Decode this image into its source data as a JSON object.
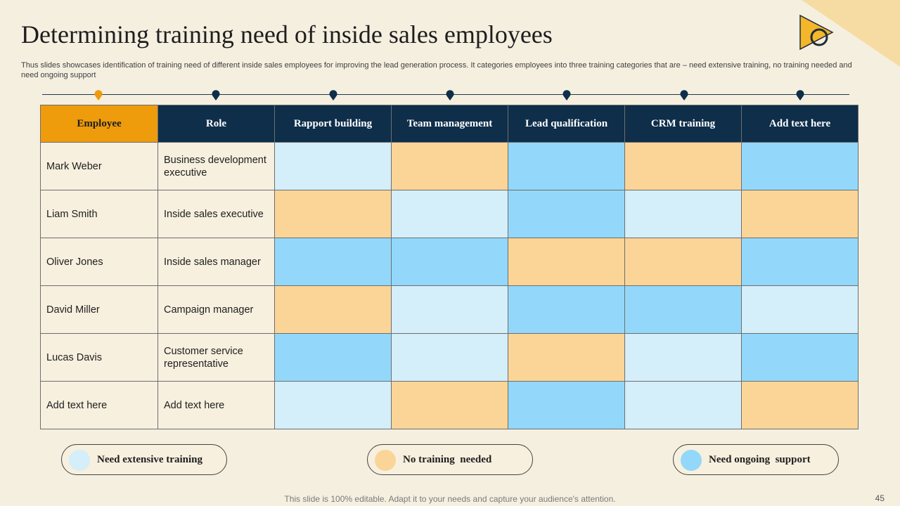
{
  "title": "Determining training need of inside sales employees",
  "subtitle": "Thus slides showcases identification of training need of different inside sales employees for improving the lead generation process. It categories employees into three training categories that are – need extensive training, no training needed and need ongoing support",
  "colors": {
    "need_extensive_training": "#d4eefa",
    "no_training_needed": "#fbd597",
    "need_ongoing_support": "#93d8fa",
    "header_navy": "#0e2e4a",
    "header_orange": "#ee9b0c",
    "background": "#f5efe0"
  },
  "table": {
    "headers": [
      "Employee",
      "Role",
      "Rapport  building",
      "Team management",
      "Lead qualification",
      "CRM training",
      "Add  text here"
    ],
    "rows": [
      {
        "employee": "Mark Weber",
        "role": "Business development executive",
        "cells": [
          "ext",
          "none",
          "ong",
          "none",
          "ong"
        ]
      },
      {
        "employee": "Liam Smith",
        "role": "Inside sales executive",
        "cells": [
          "none",
          "ext",
          "ong",
          "ext",
          "none"
        ]
      },
      {
        "employee": "Oliver Jones",
        "role": "Inside sales manager",
        "cells": [
          "ong",
          "ong",
          "none",
          "none",
          "ong"
        ]
      },
      {
        "employee": "David Miller",
        "role": "Campaign manager",
        "cells": [
          "none",
          "ext",
          "ong",
          "ong",
          "ext"
        ]
      },
      {
        "employee": "Lucas Davis",
        "role": "Customer service representative",
        "cells": [
          "ong",
          "ext",
          "none",
          "ext",
          "ong"
        ]
      },
      {
        "employee": "Add text here",
        "role": "Add text here",
        "cells": [
          "ext",
          "none",
          "ong",
          "ext",
          "none"
        ]
      }
    ]
  },
  "legend": {
    "ext": "Need extensive training",
    "none": "No training  needed",
    "ong": "Need ongoing  support"
  },
  "footer": "This slide is 100% editable. Adapt it to your needs and capture your audience's attention.",
  "page_number": "45"
}
